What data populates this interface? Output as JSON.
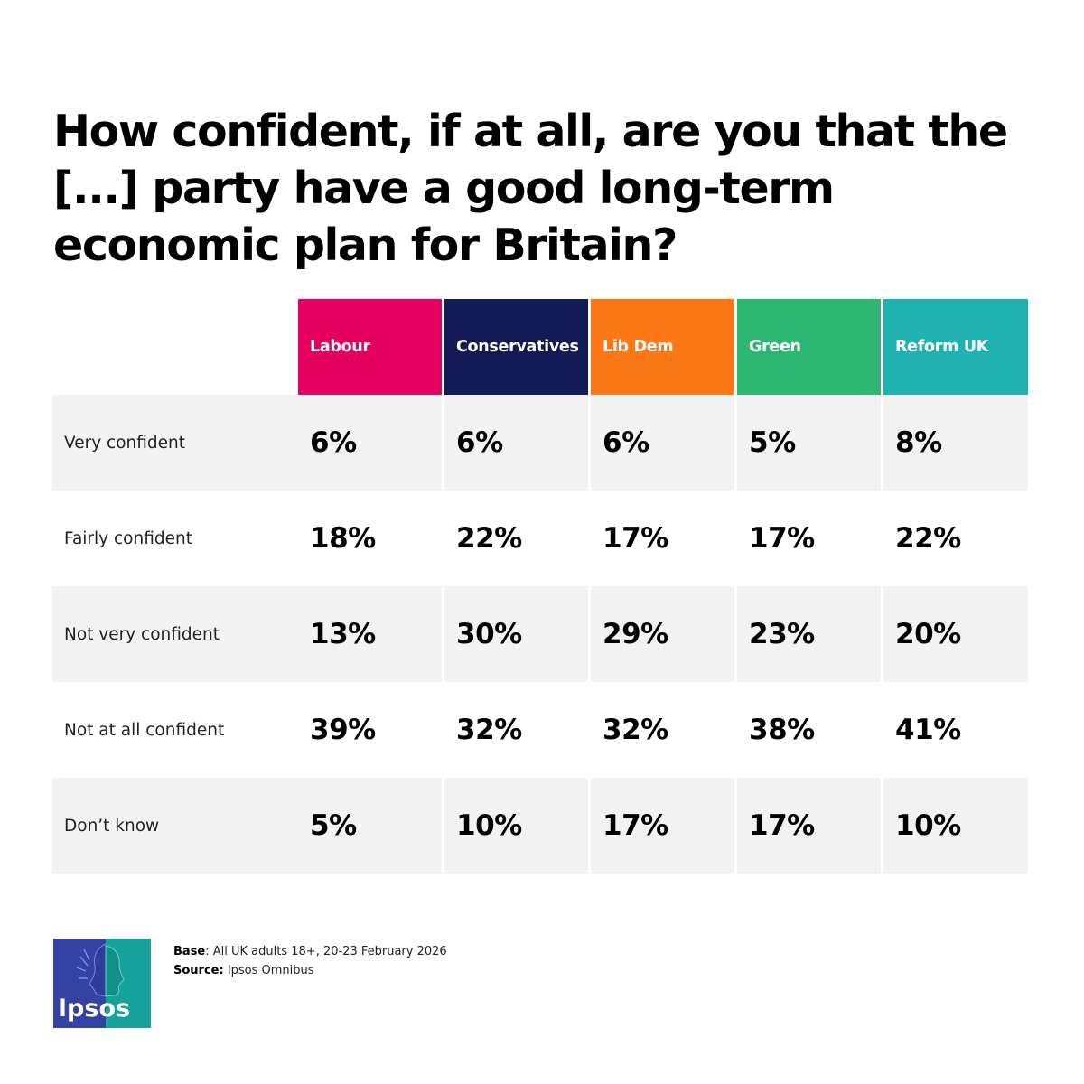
{
  "title": "How confident, if at all, are you that the [...] party have a good long-term economic plan for Britain?",
  "chart_data": {
    "type": "table",
    "title": "How confident, if at all, are you that the [...] party have a good long-term economic plan for Britain?",
    "columns": [
      {
        "name": "Labour",
        "color": "#e4005e"
      },
      {
        "name": "Conservatives",
        "color": "#131b56"
      },
      {
        "name": "Lib Dem",
        "color": "#fc7715"
      },
      {
        "name": "Green",
        "color": "#2eb673"
      },
      {
        "name": "Reform UK",
        "color": "#20b1b1"
      }
    ],
    "rows": [
      {
        "label": "Very confident",
        "values": [
          "6%",
          "6%",
          "6%",
          "5%",
          "8%"
        ]
      },
      {
        "label": "Fairly confident",
        "values": [
          "18%",
          "22%",
          "17%",
          "17%",
          "22%"
        ]
      },
      {
        "label": "Not very confident",
        "values": [
          "13%",
          "30%",
          "29%",
          "23%",
          "20%"
        ]
      },
      {
        "label": "Not at all confident",
        "values": [
          "39%",
          "32%",
          "32%",
          "38%",
          "41%"
        ]
      },
      {
        "label": "Don’t know",
        "values": [
          "5%",
          "10%",
          "17%",
          "17%",
          "10%"
        ]
      }
    ]
  },
  "footer": {
    "base_label": "Base",
    "base_text": ": All UK adults 18+, 20-23 February 2026",
    "source_label": "Source:",
    "source_text": " Ipsos Omnibus"
  },
  "logo": {
    "text": "Ipsos",
    "icon": "ipsos-head-profile-logo",
    "colors": [
      "#3443a3",
      "#16a39b"
    ]
  }
}
